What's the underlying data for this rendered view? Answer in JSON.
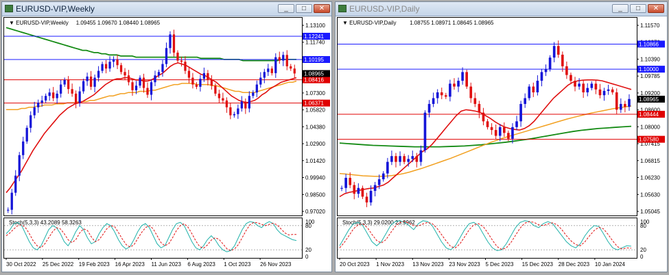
{
  "left": {
    "window_title": "EURUSD-VIP,Weekly",
    "header_symbol": "EURUSD-VIP,Weekly",
    "header_values": "1.09455 1.09670 1.08440 1.08965",
    "osc_label": "Stoch(5,3,3) 43.2089 58.3263",
    "buttons": {
      "minimize": "_",
      "maximize": "□",
      "close": "✕"
    },
    "price_ticks": [
      "1.13100",
      "1.11740",
      "1.10195",
      "1.08965",
      "1.07300",
      "1.05820",
      "1.04380",
      "1.02900",
      "1.01420",
      "0.99940",
      "0.98500",
      "0.97020"
    ],
    "osc_ticks": [
      "100",
      "80",
      "20",
      "0"
    ],
    "date_labels": [
      "30 Oct 2022",
      "25 Dec 2022",
      "19 Feb 2023",
      "16 Apr 2023",
      "11 Jun 2023",
      "6 Aug 2023",
      "1 Oct 2023",
      "26 Nov 2023"
    ],
    "levels": [
      {
        "label": "1.12241",
        "value": 1.12241,
        "color": "#1a1aff",
        "text": "#ffffff"
      },
      {
        "label": "1.10195",
        "value": 1.10195,
        "color": "#1a1aff",
        "text": "#ffffff"
      },
      {
        "label": "1.08416",
        "value": 1.08416,
        "color": "#e00000",
        "text": "#ffffff"
      },
      {
        "label": "1.06371",
        "value": 1.06371,
        "color": "#e00000",
        "text": "#ffffff"
      }
    ],
    "current_price": {
      "label": "1.08965",
      "value": 1.08965
    },
    "chart_data": {
      "type": "candlestick",
      "ylim": [
        0.965,
        1.138
      ],
      "closes": [
        0.97,
        0.985,
        1.0,
        1.018,
        1.03,
        1.042,
        1.053,
        1.06,
        1.064,
        1.066,
        1.07,
        1.073,
        1.068,
        1.072,
        1.08,
        1.084,
        1.076,
        1.072,
        1.064,
        1.074,
        1.083,
        1.087,
        1.078,
        1.086,
        1.092,
        1.098,
        1.094,
        1.1,
        1.102,
        1.097,
        1.091,
        1.088,
        1.082,
        1.075,
        1.079,
        1.086,
        1.077,
        1.071,
        1.082,
        1.088,
        1.091,
        1.098,
        1.112,
        1.124,
        1.108,
        1.101,
        1.1,
        1.092,
        1.086,
        1.08,
        1.078,
        1.085,
        1.09,
        1.084,
        1.079,
        1.072,
        1.068,
        1.066,
        1.06,
        1.053,
        1.054,
        1.059,
        1.065,
        1.059,
        1.07,
        1.073,
        1.08,
        1.086,
        1.091,
        1.094,
        1.09,
        1.104,
        1.101,
        1.106,
        1.096,
        1.094,
        1.0897
      ],
      "ma_red": [
        0.985,
        0.989,
        0.994,
        0.999,
        1.004,
        1.01,
        1.016,
        1.022,
        1.027,
        1.032,
        1.037,
        1.041,
        1.045,
        1.049,
        1.053,
        1.056,
        1.059,
        1.061,
        1.063,
        1.064,
        1.065,
        1.067,
        1.069,
        1.071,
        1.074,
        1.077,
        1.08,
        1.082,
        1.084,
        1.085,
        1.085,
        1.086,
        1.086,
        1.085,
        1.084,
        1.084,
        1.083,
        1.083,
        1.084,
        1.086,
        1.088,
        1.09,
        1.093,
        1.096,
        1.098,
        1.099,
        1.098,
        1.097,
        1.095,
        1.093,
        1.091,
        1.089,
        1.088,
        1.086,
        1.084,
        1.082,
        1.079,
        1.076,
        1.073,
        1.07,
        1.068,
        1.066,
        1.065,
        1.064,
        1.065,
        1.066,
        1.068,
        1.071,
        1.073,
        1.076,
        1.078,
        1.08,
        1.082,
        1.083,
        1.084,
        1.085,
        1.086
      ],
      "ma_orange": [
        1.058,
        1.058,
        1.058,
        1.058,
        1.059,
        1.059,
        1.06,
        1.06,
        1.061,
        1.061,
        1.062,
        1.062,
        1.062,
        1.063,
        1.063,
        1.063,
        1.064,
        1.064,
        1.064,
        1.065,
        1.065,
        1.065,
        1.066,
        1.066,
        1.067,
        1.068,
        1.069,
        1.07,
        1.07,
        1.071,
        1.072,
        1.072,
        1.073,
        1.073,
        1.073,
        1.074,
        1.074,
        1.074,
        1.075,
        1.075,
        1.076,
        1.077,
        1.078,
        1.079,
        1.08,
        1.08,
        1.081,
        1.081,
        1.081,
        1.081,
        1.08,
        1.08,
        1.08,
        1.08,
        1.079,
        1.079,
        1.078,
        1.077,
        1.076,
        1.075,
        1.074,
        1.074,
        1.073,
        1.073,
        1.073,
        1.073,
        1.074,
        1.075,
        1.076,
        1.077,
        1.078,
        1.079,
        1.08,
        1.081,
        1.082,
        1.082,
        1.083
      ],
      "ma_green": [
        1.13,
        1.129,
        1.128,
        1.127,
        1.126,
        1.125,
        1.124,
        1.123,
        1.122,
        1.121,
        1.12,
        1.119,
        1.118,
        1.117,
        1.116,
        1.115,
        1.114,
        1.113,
        1.112,
        1.111,
        1.11,
        1.11,
        1.109,
        1.108,
        1.108,
        1.107,
        1.107,
        1.106,
        1.106,
        1.106,
        1.105,
        1.105,
        1.105,
        1.105,
        1.104,
        1.104,
        1.104,
        1.104,
        1.104,
        1.104,
        1.104,
        1.104,
        1.104,
        1.104,
        1.104,
        1.104,
        1.104,
        1.104,
        1.104,
        1.104,
        1.104,
        1.103,
        1.103,
        1.103,
        1.103,
        1.103,
        1.103,
        1.102,
        1.102,
        1.102,
        1.102,
        1.102,
        1.101,
        1.101,
        1.101,
        1.101,
        1.101,
        1.101,
        1.101,
        1.101,
        1.101,
        1.101,
        1.102,
        1.102,
        1.102,
        1.102,
        1.102
      ],
      "stoch_k": [
        60,
        70,
        85,
        88,
        80,
        60,
        40,
        25,
        20,
        30,
        50,
        70,
        80,
        75,
        60,
        40,
        30,
        45,
        65,
        80,
        70,
        50,
        35,
        40,
        60,
        75,
        85,
        80,
        65,
        45,
        30,
        22,
        28,
        45,
        65,
        80,
        85,
        75,
        55,
        35,
        25,
        30,
        50,
        70,
        85,
        88,
        80,
        60,
        40,
        25,
        20,
        30,
        45,
        55,
        45,
        30,
        20,
        15,
        18,
        30,
        50,
        70,
        85,
        90,
        88,
        80,
        75,
        85,
        90,
        85,
        70,
        60,
        55,
        50,
        45,
        43
      ],
      "stoch_d": [
        55,
        62,
        72,
        80,
        82,
        75,
        60,
        42,
        30,
        25,
        35,
        50,
        65,
        75,
        72,
        60,
        45,
        38,
        45,
        62,
        72,
        68,
        52,
        40,
        45,
        58,
        72,
        80,
        78,
        63,
        47,
        33,
        27,
        32,
        48,
        63,
        75,
        80,
        72,
        55,
        38,
        30,
        35,
        50,
        68,
        80,
        85,
        76,
        60,
        42,
        28,
        24,
        32,
        44,
        50,
        46,
        35,
        23,
        18,
        22,
        33,
        50,
        68,
        82,
        88,
        87,
        83,
        80,
        83,
        86,
        82,
        72,
        62,
        57,
        58,
        58
      ],
      "stoch_levels": [
        80,
        20
      ]
    }
  },
  "right": {
    "window_title": "EURUSD-VIP,Daily",
    "header_symbol": "EURUSD-VIP,Daily",
    "header_values": "1.08755 1.08971 1.08645 1.08965",
    "osc_label": "Stoch(5,3,3) 29.0200 23.9962",
    "buttons": {
      "minimize": "_",
      "maximize": "□",
      "close": "✕"
    },
    "price_ticks": [
      "1.11570",
      "1.10970",
      "1.10390",
      "1.09785",
      "1.09200",
      "1.08600",
      "1.08000",
      "1.07415",
      "1.06815",
      "1.06230",
      "1.05630",
      "1.05045"
    ],
    "osc_ticks": [
      "100",
      "80",
      "20",
      "0"
    ],
    "date_labels": [
      "20 Oct 2023",
      "1 Nov 2023",
      "13 Nov 2023",
      "23 Nov 2023",
      "5 Dec 2023",
      "15 Dec 2023",
      "28 Dec 2023",
      "10 Jan 2024"
    ],
    "levels": [
      {
        "label": "1.10866",
        "value": 1.10866,
        "color": "#1a1aff",
        "text": "#ffffff"
      },
      {
        "label": "1.10000",
        "value": 1.1,
        "color": "#1a1aff",
        "text": "#ffffff"
      },
      {
        "label": "1.08444",
        "value": 1.08444,
        "color": "#e00000",
        "text": "#ffffff"
      },
      {
        "label": "1.07580",
        "value": 1.0758,
        "color": "#e00000",
        "text": "#ffffff"
      }
    ],
    "current_price": {
      "label": "1.08965",
      "value": 1.08965
    },
    "chart_data": {
      "type": "candlestick",
      "ylim": [
        1.0495,
        1.1175
      ],
      "closes": [
        1.059,
        1.0625,
        1.06,
        1.057,
        1.059,
        1.056,
        1.054,
        1.058,
        1.06,
        1.062,
        1.064,
        1.068,
        1.07,
        1.068,
        1.07,
        1.068,
        1.069,
        1.07,
        1.068,
        1.072,
        1.085,
        1.088,
        1.09,
        1.092,
        1.091,
        1.0905,
        1.095,
        1.094,
        1.096,
        1.099,
        1.094,
        1.09,
        1.088,
        1.085,
        1.082,
        1.08,
        1.079,
        1.077,
        1.08,
        1.078,
        1.076,
        1.08,
        1.082,
        1.088,
        1.09,
        1.094,
        1.092,
        1.096,
        1.099,
        1.1,
        1.104,
        1.108,
        1.105,
        1.101,
        1.098,
        1.096,
        1.094,
        1.095,
        1.092,
        1.0935,
        1.095,
        1.093,
        1.091,
        1.0925,
        1.093,
        1.092,
        1.086,
        1.088,
        1.087,
        1.0897
      ],
      "ma_red": [
        1.056,
        1.057,
        1.0575,
        1.0578,
        1.0582,
        1.0585,
        1.0588,
        1.059,
        1.0595,
        1.06,
        1.061,
        1.0625,
        1.064,
        1.0655,
        1.067,
        1.0685,
        1.07,
        1.0715,
        1.0725,
        1.074,
        1.076,
        1.078,
        1.08,
        1.082,
        1.084,
        1.0855,
        1.086,
        1.0858,
        1.0855,
        1.085,
        1.084,
        1.083,
        1.0818,
        1.0808,
        1.08,
        1.0795,
        1.0792,
        1.079,
        1.0795,
        1.0805,
        1.082,
        1.084,
        1.086,
        1.088,
        1.09,
        1.0915,
        1.093,
        1.0945,
        1.0955,
        1.096,
        1.0962,
        1.0963,
        1.0963,
        1.0962,
        1.096,
        1.0955,
        1.095,
        1.0945,
        1.094,
        1.0935,
        1.093
      ],
      "ma_orange": [
        1.064,
        1.0638,
        1.0636,
        1.0634,
        1.0632,
        1.0631,
        1.063,
        1.063,
        1.0631,
        1.0633,
        1.0636,
        1.064,
        1.0645,
        1.0651,
        1.0657,
        1.0664,
        1.0671,
        1.0678,
        1.0685,
        1.0692,
        1.07,
        1.0708,
        1.0716,
        1.0724,
        1.0732,
        1.074,
        1.0748,
        1.0755,
        1.0762,
        1.0768,
        1.0774,
        1.078,
        1.0786,
        1.0792,
        1.0798,
        1.0804,
        1.081,
        1.0816,
        1.0822,
        1.0828,
        1.0833,
        1.0838,
        1.0843,
        1.0848,
        1.0852,
        1.0856,
        1.086,
        1.0864,
        1.0867,
        1.087,
        1.0873
      ],
      "ma_green": [
        1.0745,
        1.0743,
        1.0741,
        1.0739,
        1.0737,
        1.0736,
        1.0735,
        1.0734,
        1.0733,
        1.0732,
        1.0732,
        1.0732,
        1.0732,
        1.0733,
        1.0734,
        1.0735,
        1.0737,
        1.0739,
        1.0742,
        1.0745,
        1.0748,
        1.0752,
        1.0756,
        1.076,
        1.0765,
        1.077,
        1.0775,
        1.078,
        1.0785,
        1.0789,
        1.0792,
        1.0795,
        1.0797,
        1.0799,
        1.0801,
        1.0803
      ],
      "stoch_k": [
        30,
        50,
        70,
        85,
        88,
        80,
        60,
        40,
        30,
        40,
        60,
        80,
        90,
        92,
        88,
        80,
        70,
        85,
        92,
        90,
        80,
        60,
        40,
        25,
        20,
        30,
        50,
        70,
        85,
        88,
        80,
        60,
        40,
        25,
        18,
        20,
        35,
        55,
        75,
        88,
        92,
        90,
        80,
        75,
        85,
        90,
        85,
        70,
        55,
        40,
        30,
        25,
        35,
        55,
        70,
        80,
        78,
        60,
        40,
        25,
        20,
        25,
        30,
        29
      ],
      "stoch_d": [
        25,
        38,
        55,
        72,
        82,
        84,
        75,
        58,
        43,
        37,
        45,
        62,
        78,
        88,
        90,
        86,
        80,
        79,
        84,
        88,
        85,
        74,
        58,
        42,
        28,
        25,
        35,
        52,
        70,
        82,
        85,
        78,
        62,
        44,
        28,
        21,
        25,
        38,
        56,
        74,
        86,
        90,
        88,
        82,
        80,
        84,
        87,
        82,
        70,
        55,
        42,
        33,
        30,
        40,
        55,
        68,
        76,
        72,
        58,
        42,
        28,
        22,
        25,
        24
      ],
      "stoch_levels": [
        80,
        20
      ]
    }
  }
}
